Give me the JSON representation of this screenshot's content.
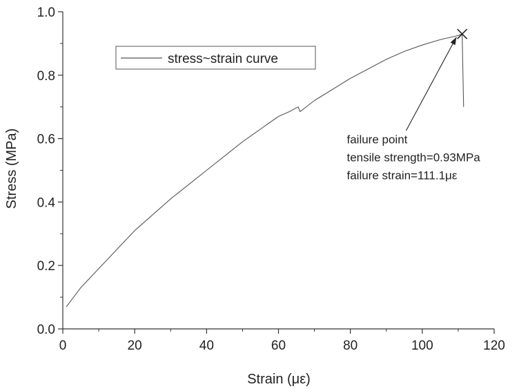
{
  "chart_data": {
    "type": "line",
    "title": "",
    "xlabel": "Strain (με)",
    "ylabel": "Stress (MPa)",
    "xlim": [
      0,
      120
    ],
    "ylim": [
      0.0,
      1.0
    ],
    "xticks": [
      0,
      20,
      40,
      60,
      80,
      100,
      120
    ],
    "xtick_labels": [
      "0",
      "20",
      "40",
      "60",
      "80",
      "100",
      "120"
    ],
    "yticks": [
      0.0,
      0.2,
      0.4,
      0.6,
      0.8,
      1.0
    ],
    "ytick_labels": [
      "0.0",
      "0.2",
      "0.4",
      "0.6",
      "0.8",
      "1.0"
    ],
    "grid": false,
    "legend_position": "top-left",
    "series": [
      {
        "name": "stress~strain curve",
        "color": "#555555",
        "x": [
          1,
          5,
          10,
          15,
          20,
          25,
          30,
          35,
          40,
          45,
          50,
          55,
          60,
          63,
          65.5,
          66,
          70,
          75,
          80,
          85,
          90,
          95,
          100,
          105,
          110,
          111.1
        ],
        "y": [
          0.07,
          0.13,
          0.19,
          0.25,
          0.31,
          0.36,
          0.41,
          0.455,
          0.5,
          0.545,
          0.59,
          0.63,
          0.67,
          0.685,
          0.7,
          0.685,
          0.72,
          0.755,
          0.79,
          0.82,
          0.85,
          0.875,
          0.895,
          0.912,
          0.925,
          0.93
        ]
      }
    ],
    "failure_point": {
      "x": 111.1,
      "y": 0.93,
      "marker": "x",
      "tail_end": [
        111.5,
        0.7
      ]
    },
    "annotation": {
      "lines": [
        "failure point",
        "tensile strength=0.93MPa",
        "failure strain=111.1με"
      ],
      "text_anchor": [
        79,
        0.585
      ],
      "arrow_from": [
        95.5,
        0.625
      ],
      "arrow_to": [
        109.5,
        0.92
      ]
    }
  }
}
